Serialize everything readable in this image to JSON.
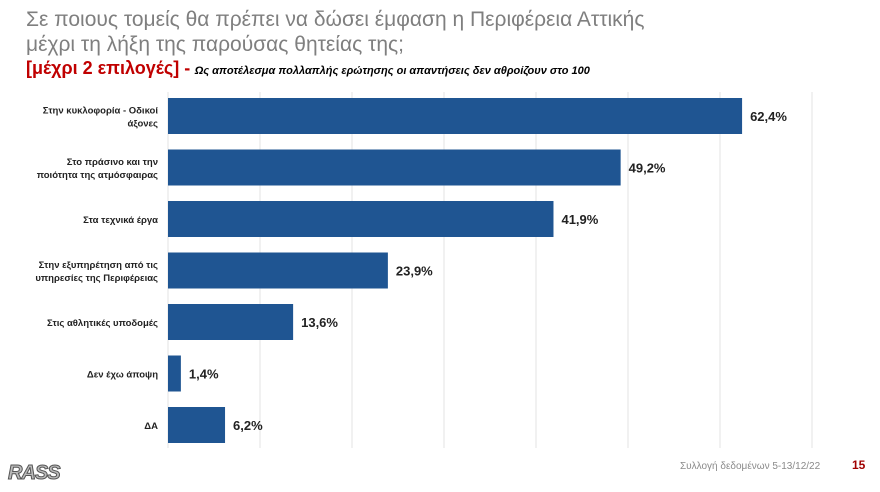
{
  "title_line1": "Σε ποιους τομείς θα πρέπει να δώσει έμφαση η Περιφέρεια Αττικής",
  "title_line2": "μέχρι τη λήξη της παρούσας θητείας της;",
  "subtitle_red": "[μέχρι 2 επιλογές] -",
  "subtitle_note": "Ως αποτέλεσμα πολλαπλής ερώτησης οι απαντήσεις δεν αθροίζουν στο 100",
  "footer": {
    "source": "Συλλογή δεδομένων 5-13/12/22",
    "page": "15",
    "logo": "RASS"
  },
  "colors": {
    "bar": "#1f5592",
    "title": "#7f7f7f",
    "accent": "#c00000"
  },
  "chart_data": {
    "type": "bar",
    "orientation": "horizontal",
    "xlim": [
      0,
      70
    ],
    "grid": true,
    "categories": [
      [
        "Στην κυκλοφορία - Οδικοί",
        "άξονες"
      ],
      [
        "Στο πράσινο και την",
        "ποιότητα της ατμόσφαιρας"
      ],
      [
        "Στα τεχνικά έργα"
      ],
      [
        "Στην εξυπηρέτηση από τις",
        "υπηρεσίες της Περιφέρειας"
      ],
      [
        "Στις αθλητικές υποδομές"
      ],
      [
        "Δεν έχω άποψη"
      ],
      [
        "ΔΑ"
      ]
    ],
    "values": [
      62.4,
      49.2,
      41.9,
      23.9,
      13.6,
      1.4,
      6.2
    ],
    "labels": [
      "62,4%",
      "49,2%",
      "41,9%",
      "23,9%",
      "13,6%",
      "1,4%",
      "6,2%"
    ]
  }
}
